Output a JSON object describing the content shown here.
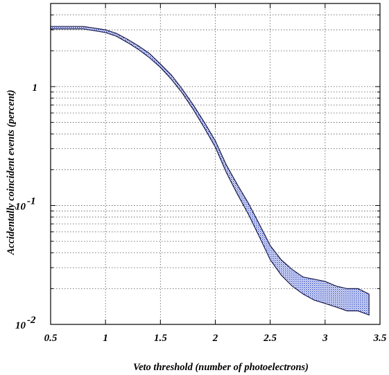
{
  "chart_data": {
    "type": "area",
    "xlabel": "Veto threshold (number of photoelectrons)",
    "ylabel": "Accidentally coincident events (percent)",
    "xlim": [
      0.5,
      3.5
    ],
    "ylim": [
      0.01,
      5
    ],
    "yscale": "log",
    "grid": true,
    "x_ticks": [
      "0.5",
      "1",
      "1.5",
      "2",
      "2.5",
      "3",
      "3.5"
    ],
    "y_ticks": [
      {
        "base": "10",
        "exp": "-2"
      },
      {
        "base": "10",
        "exp": "-1"
      },
      {
        "base": "1",
        "exp": ""
      }
    ],
    "colors": {
      "band_fill": "#3c54c8",
      "band_edge": "#1a1a4a",
      "grid": "#555555"
    },
    "series": [
      {
        "x": [
          0.5,
          0.6,
          0.7,
          0.8,
          0.9,
          1.0,
          1.1,
          1.2,
          1.3,
          1.4,
          1.5,
          1.6,
          1.7,
          1.8,
          1.9,
          2.0,
          2.1,
          2.2,
          2.3,
          2.4,
          2.5,
          2.6,
          2.7,
          2.8,
          2.9,
          3.0,
          3.1,
          3.2,
          3.3,
          3.4
        ],
        "upper": [
          3.2,
          3.2,
          3.2,
          3.2,
          3.1,
          3.0,
          2.8,
          2.5,
          2.2,
          1.9,
          1.55,
          1.25,
          0.95,
          0.7,
          0.5,
          0.35,
          0.22,
          0.15,
          0.105,
          0.07,
          0.046,
          0.035,
          0.029,
          0.025,
          0.024,
          0.023,
          0.021,
          0.02,
          0.02,
          0.018
        ],
        "lower": [
          3.05,
          3.05,
          3.05,
          3.05,
          2.95,
          2.85,
          2.65,
          2.35,
          2.05,
          1.75,
          1.45,
          1.15,
          0.88,
          0.64,
          0.45,
          0.31,
          0.19,
          0.125,
          0.085,
          0.055,
          0.035,
          0.026,
          0.021,
          0.018,
          0.016,
          0.015,
          0.014,
          0.013,
          0.013,
          0.012
        ]
      }
    ]
  }
}
